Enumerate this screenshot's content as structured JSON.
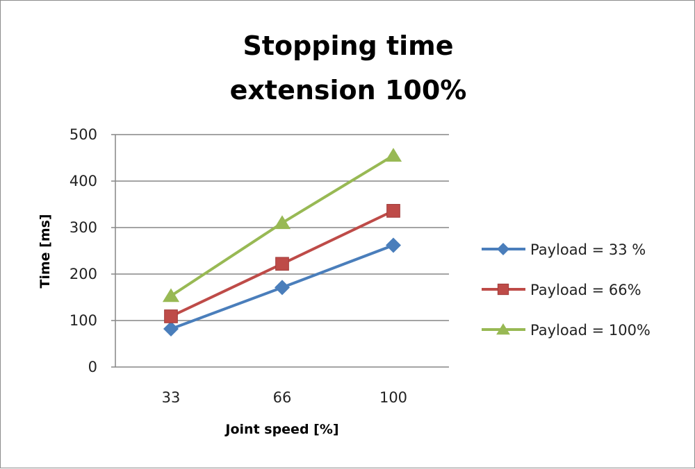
{
  "chart_data": {
    "type": "line",
    "title_lines": [
      "Stopping time",
      "extension 100%"
    ],
    "xlabel": "Joint speed [%]",
    "ylabel": "Time [ms]",
    "categories": [
      "33",
      "66",
      "100"
    ],
    "ylim": [
      0,
      500
    ],
    "yticks": [
      0,
      100,
      200,
      300,
      400,
      500
    ],
    "grid": true,
    "legend_position": "right",
    "series": [
      {
        "name": "Payload = 33 %",
        "values": [
          82,
          171,
          262
        ],
        "color": "#4a7ebb",
        "marker": "diamond"
      },
      {
        "name": "Payload =  66%",
        "values": [
          109,
          222,
          336
        ],
        "color": "#be4b48",
        "marker": "square"
      },
      {
        "name": "Payload =  100%",
        "values": [
          153,
          310,
          455
        ],
        "color": "#98b954",
        "marker": "triangle"
      }
    ]
  }
}
